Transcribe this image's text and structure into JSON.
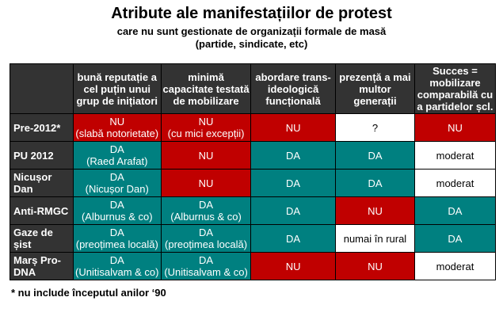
{
  "title": "Atribute ale manifestațiilor de protest",
  "subtitle1": "care nu sunt gestionate de organizații formale de masă",
  "subtitle2": "(partide, sindicate, etc)",
  "colors": {
    "header": "#333333",
    "nu": "#c00000",
    "da": "#008080",
    "neutral": "#ffffff"
  },
  "columns": [
    "",
    "bună reputație a cel puțin unui grup de inițiatori",
    "minimă capacitate testată de mobilizare",
    "abordare trans-ideologică funcțională",
    "prezență a mai multor generații",
    "Succes = mobilizare comparabilă cu a partidelor șcl."
  ],
  "rows": [
    {
      "label": "Pre-2012*",
      "cells": [
        {
          "t": "NU",
          "n": "(slabă notorietate)",
          "c": "r"
        },
        {
          "t": "NU",
          "n": "(cu mici excepții)",
          "c": "r"
        },
        {
          "t": "NU",
          "c": "r"
        },
        {
          "t": "?",
          "c": "w"
        },
        {
          "t": "NU",
          "c": "r"
        }
      ]
    },
    {
      "label": "PU 2012",
      "cells": [
        {
          "t": "DA",
          "n": "(Raed Arafat)",
          "c": "g"
        },
        {
          "t": "NU",
          "c": "r"
        },
        {
          "t": "DA",
          "c": "g"
        },
        {
          "t": "DA",
          "c": "g"
        },
        {
          "t": "moderat",
          "c": "w"
        }
      ]
    },
    {
      "label": "Nicușor Dan",
      "cells": [
        {
          "t": "DA",
          "n": "(Nicușor Dan)",
          "c": "g"
        },
        {
          "t": "NU",
          "c": "r"
        },
        {
          "t": "DA",
          "c": "g"
        },
        {
          "t": "DA",
          "c": "g"
        },
        {
          "t": "moderat",
          "c": "w"
        }
      ]
    },
    {
      "label": "Anti-RMGC",
      "cells": [
        {
          "t": "DA",
          "n": "(Alburnus & co)",
          "c": "g"
        },
        {
          "t": "DA",
          "n": "(Alburnus & co)",
          "c": "g"
        },
        {
          "t": "DA",
          "c": "g"
        },
        {
          "t": "NU",
          "c": "r"
        },
        {
          "t": "DA",
          "c": "g"
        }
      ]
    },
    {
      "label": "Gaze de șist",
      "cells": [
        {
          "t": "DA",
          "n": "(preoțimea locală)",
          "c": "g"
        },
        {
          "t": "DA",
          "n": "(preoțimea locală)",
          "c": "g"
        },
        {
          "t": "DA",
          "c": "g"
        },
        {
          "t": "numai în rural",
          "c": "w"
        },
        {
          "t": "DA",
          "c": "g"
        }
      ]
    },
    {
      "label": "Marș Pro-DNA",
      "cells": [
        {
          "t": "DA",
          "n": "(Unitisalvam & co)",
          "c": "g"
        },
        {
          "t": "DA",
          "n": "(Unitisalvam & co)",
          "c": "g"
        },
        {
          "t": "NU",
          "c": "r"
        },
        {
          "t": "NU",
          "c": "r"
        },
        {
          "t": "moderat",
          "c": "w"
        }
      ]
    }
  ],
  "footnote": "* nu include începutul anilor ‘90"
}
